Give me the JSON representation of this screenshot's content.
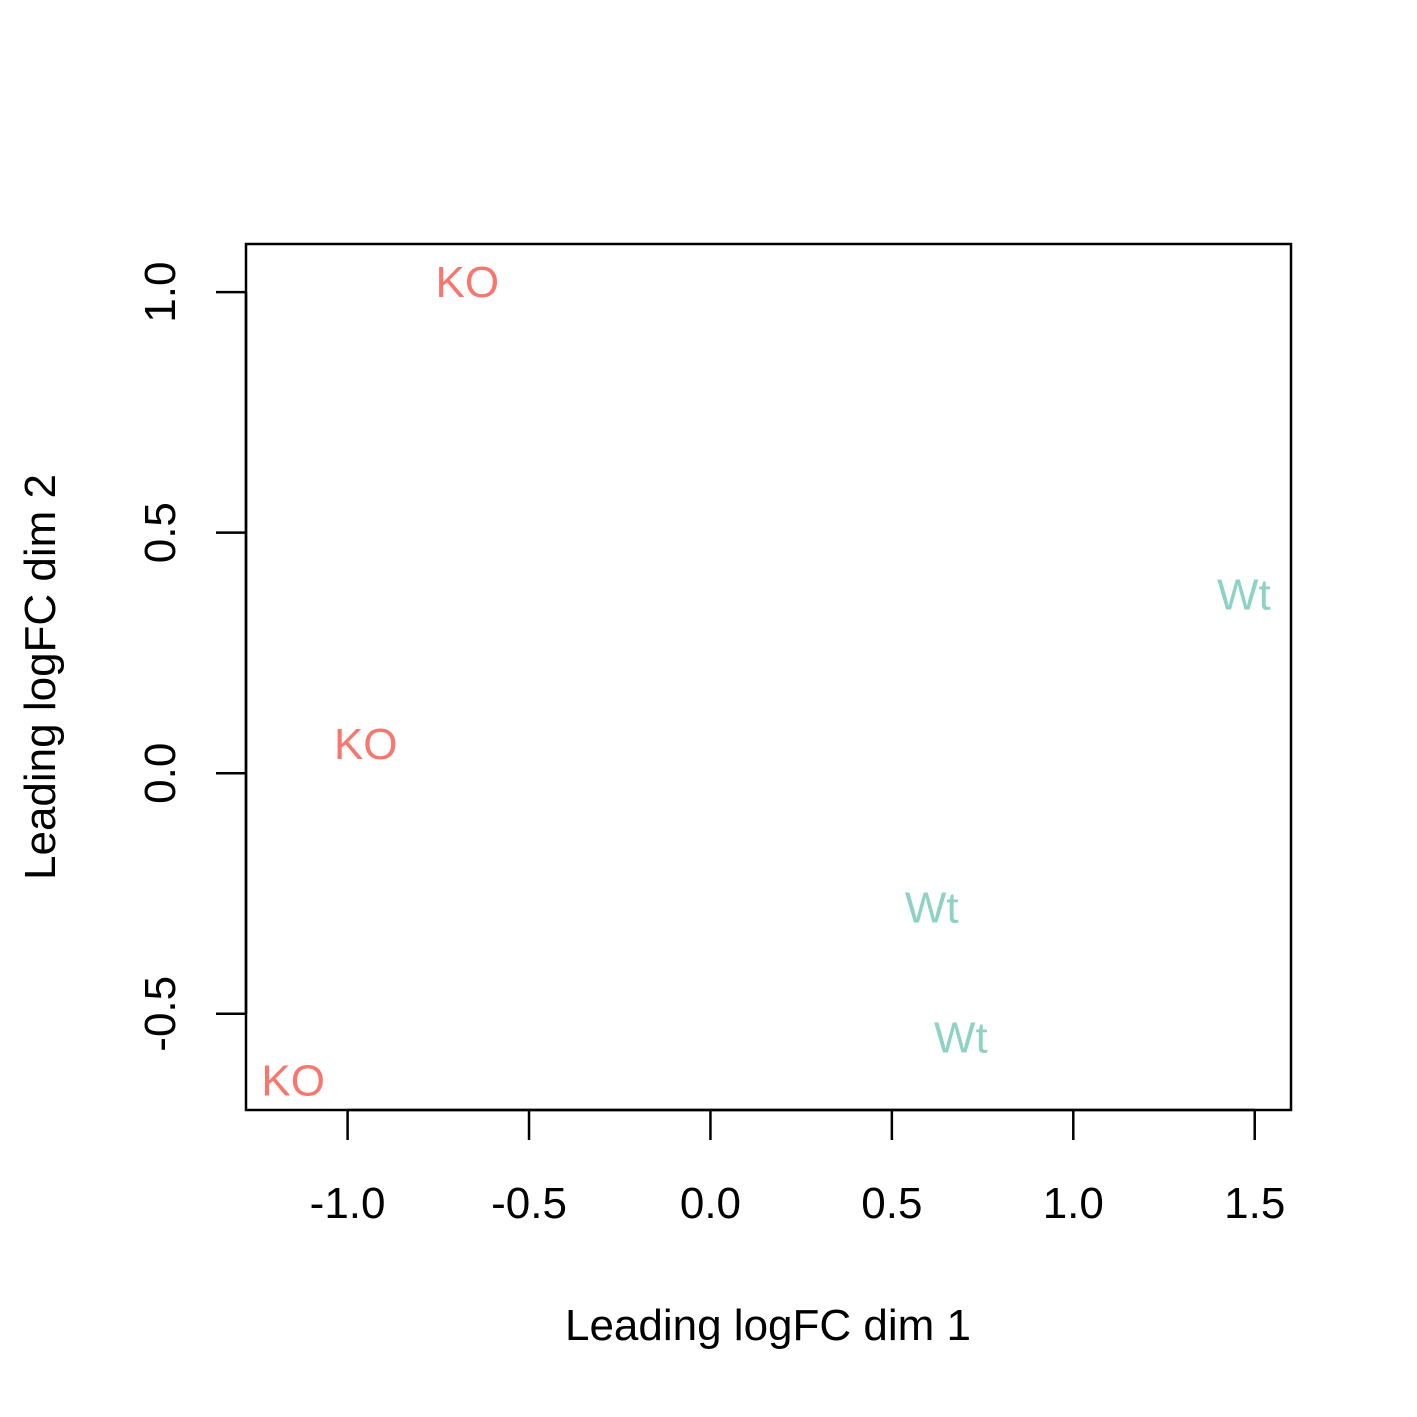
{
  "chart_data": {
    "type": "scatter",
    "title": "",
    "xlabel": "Leading logFC dim 1",
    "ylabel": "Leading logFC dim 2",
    "xlim": [
      -1.28,
      1.6
    ],
    "ylim": [
      -0.7,
      1.1
    ],
    "xticks": [
      -1.0,
      -0.5,
      0.0,
      0.5,
      1.0,
      1.5
    ],
    "xtick_labels": [
      "-1.0",
      "-0.5",
      "0.0",
      "0.5",
      "1.0",
      "1.5"
    ],
    "yticks": [
      -0.5,
      0.0,
      0.5,
      1.0
    ],
    "ytick_labels": [
      "-0.5",
      "0.0",
      "0.5",
      "1.0"
    ],
    "grid": false,
    "legend": "none",
    "colors": {
      "KO": "#F8766D",
      "Wt": "#8ED2C6"
    },
    "points": [
      {
        "label": "KO",
        "x": -0.67,
        "y": 1.02
      },
      {
        "label": "KO",
        "x": -0.95,
        "y": 0.06
      },
      {
        "label": "KO",
        "x": -1.15,
        "y": -0.64
      },
      {
        "label": "Wt",
        "x": 1.47,
        "y": 0.37
      },
      {
        "label": "Wt",
        "x": 0.61,
        "y": -0.28
      },
      {
        "label": "Wt",
        "x": 0.69,
        "y": -0.55
      }
    ]
  }
}
